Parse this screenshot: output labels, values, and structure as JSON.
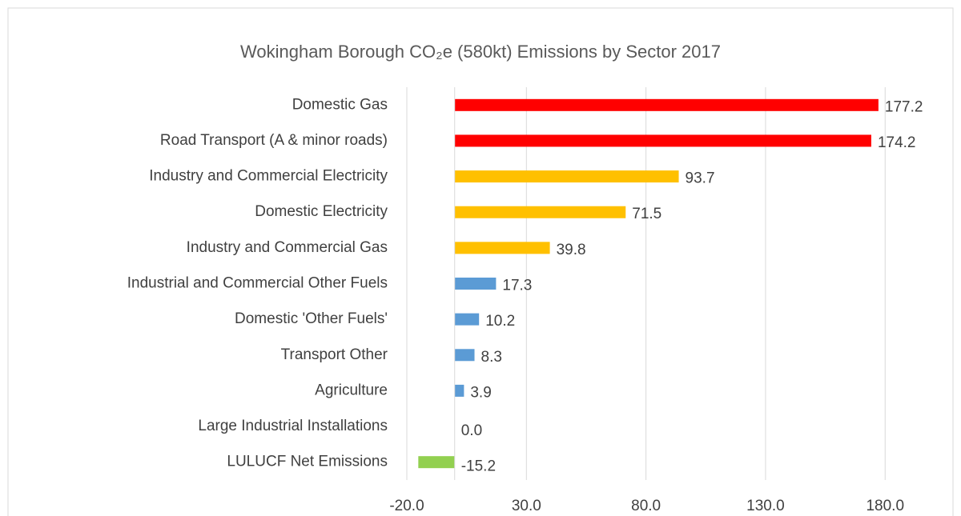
{
  "chart_data": {
    "type": "bar",
    "orientation": "horizontal",
    "title": "Wokingham Borough CO₂e (580kt) Emissions by Sector 2017",
    "categories": [
      "Domestic Gas",
      "Road Transport (A & minor roads)",
      "Industry and Commercial Electricity",
      "Domestic Electricity",
      "Industry and Commercial Gas",
      "Industrial and Commercial Other Fuels",
      "Domestic 'Other Fuels'",
      "Transport Other",
      "Agriculture",
      "Large Industrial Installations",
      "LULUCF Net Emissions"
    ],
    "values": [
      177.2,
      174.2,
      93.7,
      71.5,
      39.8,
      17.3,
      10.2,
      8.3,
      3.9,
      0.0,
      -15.2
    ],
    "value_labels": [
      "177.2",
      "174.2",
      "93.7",
      "71.5",
      "39.8",
      "17.3",
      "10.2",
      "8.3",
      "3.9",
      "0.0",
      "-15.2"
    ],
    "colors": [
      "#ff0000",
      "#ff0000",
      "#ffc000",
      "#ffc000",
      "#ffc000",
      "#5b9bd5",
      "#5b9bd5",
      "#5b9bd5",
      "#5b9bd5",
      "#5b9bd5",
      "#92d050"
    ],
    "xlim": [
      -20,
      200
    ],
    "xticks": [
      {
        "value": -20,
        "label": "-20.0"
      },
      {
        "value": 30,
        "label": "30.0"
      },
      {
        "value": 80,
        "label": "80.0"
      },
      {
        "value": 130,
        "label": "130.0"
      },
      {
        "value": 180,
        "label": "180.0"
      }
    ],
    "grid": true
  }
}
